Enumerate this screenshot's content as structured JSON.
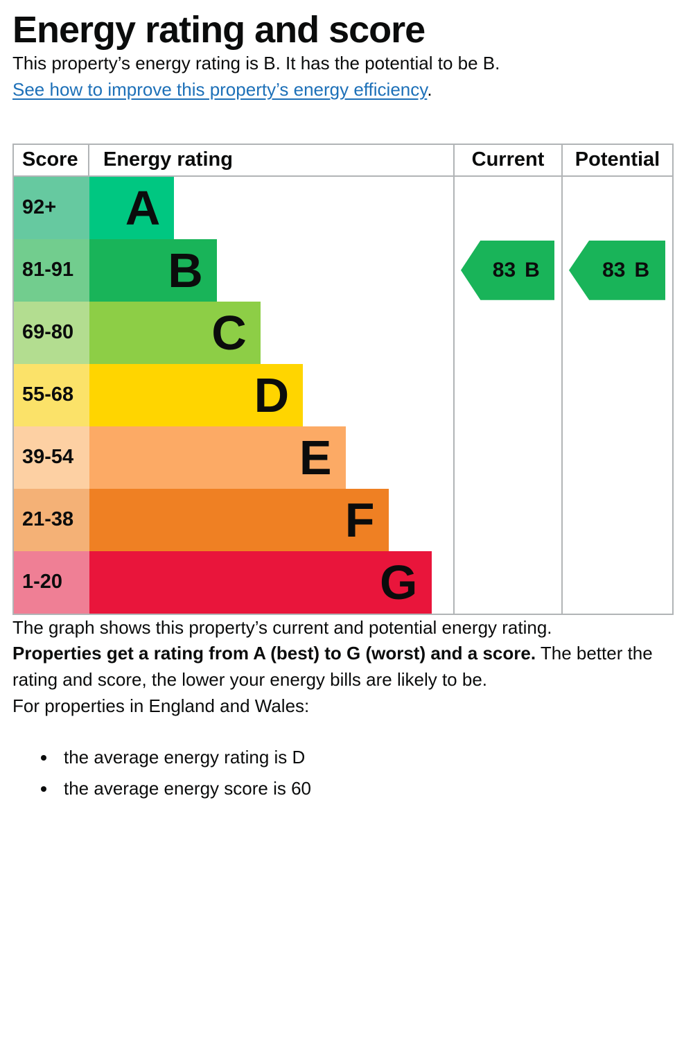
{
  "page": {
    "title": "Energy rating and score",
    "intro": "This property’s energy rating is B. It has the potential to be B.",
    "link_text": "See how to improve this property’s energy efficiency",
    "link_suffix": ".",
    "graph_caption": "The graph shows this property’s current and potential energy rating.",
    "explainer_bold": "Properties get a rating from A (best) to G (worst) and a score.",
    "explainer_rest": " The better the rating and score, the lower your energy bills are likely to be.",
    "averages_intro": "For properties in England and Wales:",
    "bullets": [
      "the average energy rating is D",
      "the average energy score is 60"
    ]
  },
  "colors": {
    "text": "#0b0c0c",
    "link": "#1d70b8",
    "table_border": "#b1b4b6"
  },
  "chart_data": {
    "type": "table",
    "title": "Energy rating and score (EPC graph)",
    "headers": {
      "score": "Score",
      "rating": "Energy rating",
      "current": "Current",
      "potential": "Potential"
    },
    "bands": [
      {
        "letter": "A",
        "range": "92+",
        "width_pct": 23.3,
        "color": "#00c781",
        "tint": "#66c9a0"
      },
      {
        "letter": "B",
        "range": "81-91",
        "width_pct": 35.0,
        "color": "#19b459",
        "tint": "#72cd8e"
      },
      {
        "letter": "C",
        "range": "69-80",
        "width_pct": 47.0,
        "color": "#8dce46",
        "tint": "#b3dd90"
      },
      {
        "letter": "D",
        "range": "55-68",
        "width_pct": 58.7,
        "color": "#ffd500",
        "tint": "#fbe269"
      },
      {
        "letter": "E",
        "range": "39-54",
        "width_pct": 70.4,
        "color": "#fcaa65",
        "tint": "#fdd0a3"
      },
      {
        "letter": "F",
        "range": "21-38",
        "width_pct": 82.2,
        "color": "#ef8023",
        "tint": "#f4b176"
      },
      {
        "letter": "G",
        "range": "1-20",
        "width_pct": 94.0,
        "color": "#e9153b",
        "tint": "#ef7f95"
      }
    ],
    "current": {
      "score": "83",
      "band": "B",
      "color": "#19b459"
    },
    "potential": {
      "score": "83",
      "band": "B",
      "color": "#19b459"
    }
  }
}
